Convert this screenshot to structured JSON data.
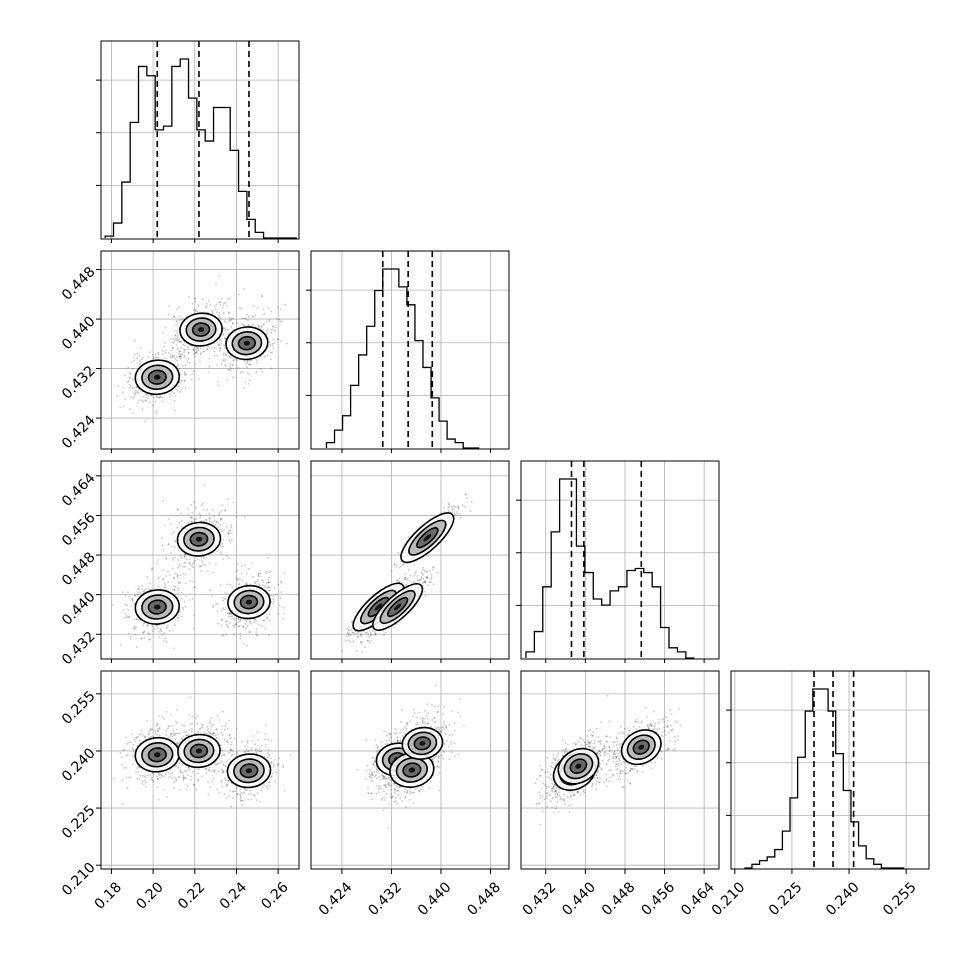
{
  "chart_data": {
    "type": "corner",
    "title": "",
    "grid": true,
    "parameters": [
      {
        "index": 0,
        "range": [
          0.175,
          0.27
        ],
        "ticks": [
          0.18,
          0.2,
          0.22,
          0.24,
          0.26
        ],
        "tick_labels": [
          "0.18",
          "0.20",
          "0.22",
          "0.24",
          "0.26"
        ],
        "quantiles": [
          0.202,
          0.222,
          0.246
        ],
        "hist_edges": [
          0.177,
          0.181,
          0.185,
          0.189,
          0.193,
          0.197,
          0.201,
          0.205,
          0.209,
          0.213,
          0.217,
          0.221,
          0.225,
          0.229,
          0.233,
          0.237,
          0.241,
          0.245,
          0.249,
          0.253,
          0.257,
          0.261,
          0.265,
          0.269
        ],
        "hist_counts": [
          0.01,
          0.08,
          0.3,
          0.62,
          0.92,
          0.87,
          0.58,
          0.6,
          0.92,
          0.96,
          0.75,
          0.58,
          0.52,
          0.7,
          0.7,
          0.47,
          0.25,
          0.1,
          0.03,
          0.0,
          0.0,
          0.0,
          0.0
        ]
      },
      {
        "index": 1,
        "range": [
          0.419,
          0.451
        ],
        "ticks": [
          0.424,
          0.432,
          0.44,
          0.448
        ],
        "tick_labels": [
          "0.424",
          "0.432",
          "0.440",
          "0.448"
        ],
        "quantiles": [
          0.4306,
          0.4347,
          0.4386
        ],
        "hist_edges": [
          0.4215,
          0.4228,
          0.4241,
          0.4254,
          0.4267,
          0.428,
          0.4293,
          0.4306,
          0.4319,
          0.4332,
          0.4345,
          0.4358,
          0.4371,
          0.4384,
          0.4397,
          0.441,
          0.4423,
          0.4436,
          0.4449,
          0.4462
        ],
        "hist_counts": [
          0.03,
          0.1,
          0.18,
          0.35,
          0.52,
          0.68,
          0.88,
          1.0,
          1.0,
          0.9,
          0.8,
          0.6,
          0.45,
          0.28,
          0.15,
          0.05,
          0.03,
          0.0,
          0.0
        ]
      },
      {
        "index": 2,
        "range": [
          0.427,
          0.467
        ],
        "ticks": [
          0.432,
          0.44,
          0.448,
          0.456,
          0.464
        ],
        "tick_labels": [
          "0.432",
          "0.440",
          "0.448",
          "0.456",
          "0.464"
        ],
        "quantiles": [
          0.4372,
          0.4397,
          0.4513
        ],
        "hist_edges": [
          0.428,
          0.4297,
          0.4314,
          0.4331,
          0.4348,
          0.4365,
          0.4382,
          0.4399,
          0.4416,
          0.4433,
          0.445,
          0.4467,
          0.4484,
          0.4501,
          0.4518,
          0.4535,
          0.4552,
          0.4569,
          0.4586,
          0.4603,
          0.462
        ],
        "hist_counts": [
          0.03,
          0.13,
          0.35,
          0.62,
          0.88,
          0.88,
          0.55,
          0.42,
          0.29,
          0.26,
          0.33,
          0.35,
          0.43,
          0.44,
          0.42,
          0.35,
          0.15,
          0.05,
          0.03,
          0.0
        ]
      },
      {
        "index": 3,
        "range": [
          0.209,
          0.261
        ],
        "ticks": [
          0.21,
          0.225,
          0.24,
          0.255
        ],
        "tick_labels": [
          "0.210",
          "0.225",
          "0.240",
          "0.255"
        ],
        "quantiles": [
          0.2308,
          0.2358,
          0.2412
        ],
        "hist_edges": [
          0.2125,
          0.2145,
          0.2165,
          0.2185,
          0.2205,
          0.2225,
          0.2245,
          0.2265,
          0.2285,
          0.2305,
          0.2325,
          0.2345,
          0.2365,
          0.2385,
          0.2405,
          0.2425,
          0.2445,
          0.2465,
          0.2485,
          0.2505,
          0.2525,
          0.2545
        ],
        "hist_counts": [
          0.0,
          0.02,
          0.04,
          0.06,
          0.1,
          0.2,
          0.38,
          0.6,
          0.85,
          0.97,
          0.97,
          0.85,
          0.62,
          0.42,
          0.25,
          0.12,
          0.05,
          0.02,
          0.0,
          0.0,
          0.0
        ]
      }
    ],
    "density_modes": [
      {
        "cell": [
          1,
          0
        ],
        "components": [
          [
            0.202,
            0.4306,
            1.0
          ],
          [
            0.223,
            0.4383,
            0.8
          ],
          [
            0.245,
            0.4361,
            0.75
          ]
        ]
      },
      {
        "cell": [
          2,
          0
        ],
        "components": [
          [
            0.202,
            0.4375,
            1.0
          ],
          [
            0.222,
            0.4512,
            0.9
          ],
          [
            0.246,
            0.4385,
            0.8
          ]
        ]
      },
      {
        "cell": [
          2,
          1
        ],
        "components": [
          [
            0.4299,
            0.4375,
            0.8
          ],
          [
            0.433,
            0.4375,
            0.7
          ],
          [
            0.4378,
            0.4515,
            1.0
          ]
        ]
      },
      {
        "cell": [
          3,
          0
        ],
        "components": [
          [
            0.202,
            0.239,
            1.0
          ],
          [
            0.222,
            0.24,
            0.8
          ],
          [
            0.246,
            0.2348,
            0.9
          ]
        ]
      },
      {
        "cell": [
          3,
          1
        ],
        "components": [
          [
            0.4329,
            0.2378,
            0.7
          ],
          [
            0.4353,
            0.235,
            1.0
          ],
          [
            0.437,
            0.242,
            0.6
          ]
        ]
      },
      {
        "cell": [
          3,
          2
        ],
        "components": [
          [
            0.4378,
            0.2345,
            1.0
          ],
          [
            0.4386,
            0.236,
            0.8
          ],
          [
            0.4513,
            0.241,
            0.7
          ]
        ]
      }
    ]
  }
}
